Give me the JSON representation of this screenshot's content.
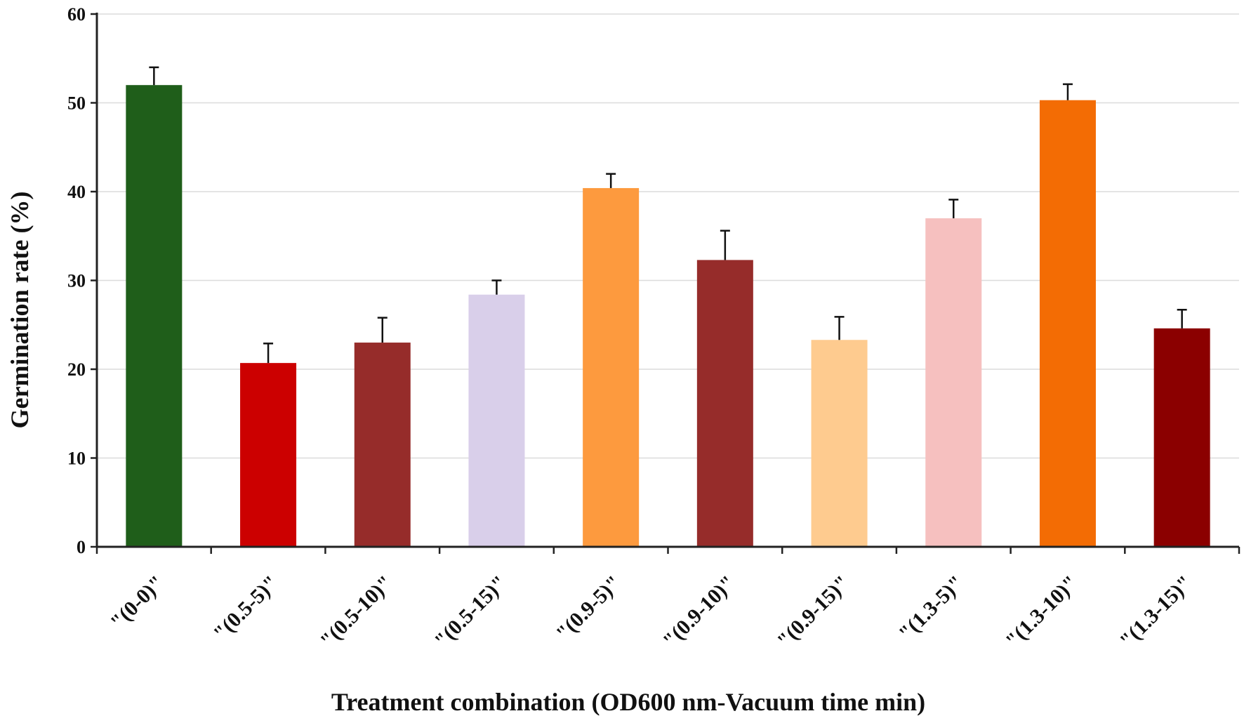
{
  "chart_data": {
    "type": "bar",
    "title": "",
    "xlabel": "Treatment combination (OD600 nm-Vacuum time min)",
    "ylabel": "Germination  rate (%)",
    "ylim": [
      0,
      60
    ],
    "yticks": [
      0,
      10,
      20,
      30,
      40,
      50,
      60
    ],
    "grid": true,
    "categories": [
      "\"(0-0)\"",
      "\"(0.5-5)\"",
      "\"(0.5-10)\"",
      "\"(0.5-15)\"",
      "\"(0.9-5)\"",
      "\"(0.9-10)\"",
      "\"(0.9-15)\"",
      "\"(1.3-5)\"",
      "\"(1.3-10)\"",
      "\"(1.3-15)\""
    ],
    "values": [
      52.0,
      20.7,
      23.0,
      28.4,
      40.4,
      32.3,
      23.3,
      37.0,
      50.3,
      24.6
    ],
    "errors": [
      2.0,
      2.2,
      2.8,
      1.6,
      1.6,
      3.3,
      2.6,
      2.1,
      1.8,
      2.1
    ],
    "colors": [
      "#1f5e1a",
      "#cc0000",
      "#962c2a",
      "#d9cfea",
      "#fd9a3e",
      "#962c2a",
      "#fecb8f",
      "#f6c0bf",
      "#f36c04",
      "#8b0000"
    ]
  }
}
